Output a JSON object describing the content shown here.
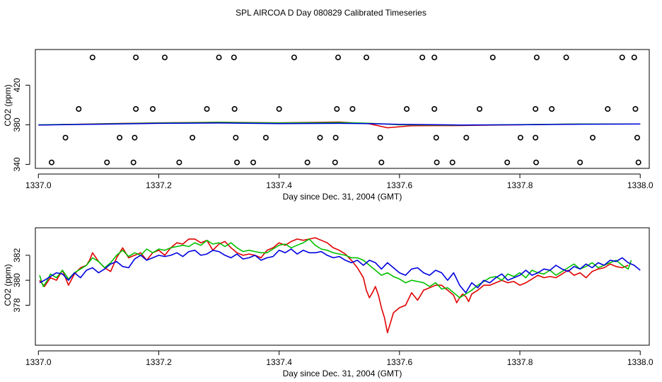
{
  "title": "SPL AIRCOA D  Day 080829  Calibrated Timeseries",
  "colors": {
    "red": "#e00000",
    "green": "#00c000",
    "blue": "#0000e0"
  },
  "chart_data": [
    {
      "type": "scatter",
      "name": "top-panel",
      "xlabel": "Day since Dec. 31, 2004 (GMT)",
      "ylabel": "CO2 (ppm)",
      "xlim": [
        1336.995,
        1338.015
      ],
      "ylim": [
        336,
        456
      ],
      "xticks": [
        1337.0,
        1337.2,
        1337.4,
        1337.6,
        1337.8,
        1338.0
      ],
      "xtick_labels": [
        "1337.0",
        "1337.2",
        "1337.4",
        "1337.6",
        "1337.8",
        "1338.0"
      ],
      "yticks": [
        340,
        380,
        420
      ],
      "ytick_labels": [
        "340",
        "380",
        "420"
      ],
      "points": {
        "x": [
          1337.09,
          1337.162,
          1337.21,
          1337.3,
          1337.325,
          1337.425,
          1337.498,
          1337.545,
          1337.638,
          1337.658,
          1337.755,
          1337.828,
          1337.877,
          1337.97,
          1337.99,
          1337.067,
          1337.162,
          1337.19,
          1337.28,
          1337.326,
          1337.4,
          1337.496,
          1337.522,
          1337.612,
          1337.658,
          1337.733,
          1337.826,
          1337.853,
          1337.946,
          1337.992,
          1337.045,
          1337.135,
          1337.16,
          1337.256,
          1337.328,
          1337.378,
          1337.468,
          1337.494,
          1337.568,
          1337.661,
          1337.711,
          1337.801,
          1337.826,
          1337.921,
          1337.995,
          1337.022,
          1337.114,
          1337.158,
          1337.234,
          1337.33,
          1337.357,
          1337.447,
          1337.493,
          1337.57,
          1337.662,
          1337.688,
          1337.779,
          1337.827,
          1337.9,
          1337.997
        ],
        "y": [
          448,
          448,
          448,
          448,
          448,
          448,
          448,
          448,
          448,
          448,
          448,
          448,
          448,
          448,
          448,
          396,
          396,
          396,
          396,
          396,
          396,
          396,
          396,
          396,
          396,
          396,
          396,
          396,
          396,
          396,
          367,
          367,
          367,
          367,
          367,
          367,
          367,
          367,
          367,
          367,
          367,
          367,
          367,
          367,
          367,
          342,
          342,
          342,
          342,
          342,
          342,
          342,
          342,
          342,
          342,
          342,
          342,
          342,
          342,
          342
        ]
      },
      "series": [
        {
          "name": "red",
          "color": "red",
          "x": [
            1337.0,
            1337.1,
            1337.2,
            1337.3,
            1337.4,
            1337.5,
            1337.55,
            1337.58,
            1337.62,
            1337.7,
            1337.8,
            1337.9,
            1338.0
          ],
          "y": [
            379.8,
            381.0,
            382.0,
            382.6,
            382.0,
            382.8,
            381.0,
            377.0,
            379.0,
            379.2,
            380.0,
            380.8,
            380.8
          ]
        },
        {
          "name": "green",
          "color": "green",
          "x": [
            1337.0,
            1337.1,
            1337.2,
            1337.3,
            1337.4,
            1337.5,
            1337.55,
            1337.6,
            1337.7,
            1337.8,
            1337.9,
            1338.0
          ],
          "y": [
            380.0,
            380.8,
            381.8,
            382.4,
            381.8,
            382.2,
            381.6,
            380.0,
            379.6,
            380.2,
            380.8,
            380.8
          ]
        },
        {
          "name": "blue",
          "color": "blue",
          "x": [
            1337.0,
            1337.1,
            1337.2,
            1337.3,
            1337.4,
            1337.5,
            1337.55,
            1337.6,
            1337.7,
            1337.8,
            1337.9,
            1338.0
          ],
          "y": [
            379.8,
            380.6,
            381.4,
            381.8,
            381.2,
            381.4,
            381.2,
            380.4,
            379.8,
            380.0,
            380.6,
            380.8
          ]
        }
      ]
    },
    {
      "type": "line",
      "name": "bottom-panel",
      "xlabel": "Day since Dec. 31, 2004 (GMT)",
      "ylabel": "CO2 (ppm)",
      "xlim": [
        1336.995,
        1338.015
      ],
      "ylim": [
        374.8,
        384.2
      ],
      "xticks": [
        1337.0,
        1337.2,
        1337.4,
        1337.6,
        1337.8,
        1338.0
      ],
      "xtick_labels": [
        "1337.0",
        "1337.2",
        "1337.4",
        "1337.6",
        "1337.8",
        "1338.0"
      ],
      "yticks": [
        378,
        380,
        382
      ],
      "ytick_labels": [
        "378",
        "380",
        "382"
      ],
      "series": [
        {
          "name": "red",
          "color": "red",
          "x": [
            1337.002,
            1337.01,
            1337.02,
            1337.03,
            1337.04,
            1337.05,
            1337.06,
            1337.07,
            1337.08,
            1337.085,
            1337.09,
            1337.1,
            1337.11,
            1337.12,
            1337.13,
            1337.14,
            1337.15,
            1337.16,
            1337.17,
            1337.18,
            1337.19,
            1337.2,
            1337.21,
            1337.22,
            1337.23,
            1337.24,
            1337.25,
            1337.26,
            1337.27,
            1337.28,
            1337.29,
            1337.3,
            1337.31,
            1337.32,
            1337.33,
            1337.34,
            1337.35,
            1337.36,
            1337.37,
            1337.38,
            1337.39,
            1337.4,
            1337.41,
            1337.42,
            1337.43,
            1337.44,
            1337.45,
            1337.46,
            1337.47,
            1337.48,
            1337.49,
            1337.5,
            1337.51,
            1337.52,
            1337.53,
            1337.54,
            1337.545,
            1337.55,
            1337.555,
            1337.56,
            1337.565,
            1337.57,
            1337.575,
            1337.58,
            1337.585,
            1337.59,
            1337.6,
            1337.61,
            1337.62,
            1337.63,
            1337.64,
            1337.65,
            1337.66,
            1337.67,
            1337.68,
            1337.69,
            1337.695,
            1337.7,
            1337.705,
            1337.71,
            1337.715,
            1337.72,
            1337.73,
            1337.74,
            1337.75,
            1337.76,
            1337.77,
            1337.78,
            1337.79,
            1337.8,
            1337.81,
            1337.82,
            1337.83,
            1337.84,
            1337.85,
            1337.86,
            1337.87,
            1337.88,
            1337.89,
            1337.9,
            1337.91,
            1337.92,
            1337.93,
            1337.94,
            1337.95,
            1337.96,
            1337.97,
            1337.98
          ],
          "y": [
            380.0,
            379.5,
            380.2,
            380.0,
            380.8,
            379.6,
            380.5,
            381.0,
            381.2,
            381.6,
            382.2,
            381.5,
            381.0,
            380.7,
            381.8,
            382.6,
            381.8,
            382.0,
            382.2,
            381.6,
            382.2,
            382.4,
            382.0,
            382.6,
            383.0,
            382.9,
            383.3,
            383.3,
            383.0,
            383.2,
            382.4,
            382.9,
            383.1,
            382.6,
            382.2,
            382.0,
            382.1,
            382.0,
            381.8,
            382.4,
            382.6,
            383.0,
            382.8,
            383.1,
            383.3,
            383.2,
            383.3,
            383.4,
            383.2,
            383.0,
            382.6,
            382.4,
            382.1,
            381.6,
            381.0,
            380.2,
            379.2,
            378.6,
            379.0,
            379.5,
            378.8,
            377.8,
            377.0,
            375.8,
            376.6,
            377.4,
            377.8,
            378.0,
            379.0,
            378.4,
            379.2,
            379.4,
            379.6,
            379.6,
            379.2,
            378.8,
            378.2,
            378.6,
            378.9,
            378.7,
            378.3,
            378.9,
            379.2,
            379.6,
            379.6,
            379.8,
            380.0,
            379.8,
            379.9,
            379.6,
            379.8,
            380.1,
            380.4,
            380.2,
            380.3,
            380.2,
            380.5,
            380.8,
            380.4,
            380.6,
            380.2,
            380.7,
            380.9,
            381.0,
            381.3,
            381.1,
            381.0,
            381.2
          ]
        },
        {
          "name": "green",
          "color": "green",
          "x": [
            1337.002,
            1337.008,
            1337.015,
            1337.02,
            1337.03,
            1337.04,
            1337.05,
            1337.06,
            1337.07,
            1337.08,
            1337.09,
            1337.1,
            1337.11,
            1337.12,
            1337.13,
            1337.14,
            1337.15,
            1337.16,
            1337.17,
            1337.18,
            1337.19,
            1337.2,
            1337.21,
            1337.22,
            1337.23,
            1337.24,
            1337.25,
            1337.26,
            1337.27,
            1337.28,
            1337.29,
            1337.3,
            1337.31,
            1337.32,
            1337.33,
            1337.34,
            1337.35,
            1337.36,
            1337.37,
            1337.38,
            1337.39,
            1337.4,
            1337.41,
            1337.42,
            1337.43,
            1337.44,
            1337.45,
            1337.46,
            1337.47,
            1337.48,
            1337.49,
            1337.5,
            1337.51,
            1337.52,
            1337.53,
            1337.54,
            1337.55,
            1337.56,
            1337.57,
            1337.58,
            1337.59,
            1337.6,
            1337.61,
            1337.62,
            1337.63,
            1337.64,
            1337.65,
            1337.66,
            1337.67,
            1337.68,
            1337.69,
            1337.7,
            1337.71,
            1337.72,
            1337.73,
            1337.74,
            1337.75,
            1337.76,
            1337.77,
            1337.78,
            1337.79,
            1337.8,
            1337.81,
            1337.82,
            1337.83,
            1337.84,
            1337.85,
            1337.86,
            1337.87,
            1337.88,
            1337.89,
            1337.9,
            1337.91,
            1337.92,
            1337.93,
            1337.94,
            1337.95,
            1337.96,
            1337.97,
            1337.98,
            1337.985
          ],
          "y": [
            380.4,
            379.5,
            380.0,
            380.5,
            380.2,
            380.8,
            380.1,
            380.6,
            380.9,
            381.2,
            381.8,
            381.5,
            381.0,
            381.4,
            382.0,
            382.4,
            381.9,
            382.2,
            382.0,
            382.5,
            382.2,
            382.5,
            382.4,
            382.6,
            382.7,
            382.8,
            382.7,
            383.0,
            382.8,
            383.2,
            382.9,
            383.0,
            382.7,
            383.0,
            382.6,
            382.3,
            382.4,
            382.3,
            382.2,
            382.2,
            382.5,
            382.8,
            382.9,
            382.6,
            382.8,
            383.0,
            383.3,
            382.8,
            382.5,
            382.4,
            382.2,
            382.1,
            382.0,
            381.8,
            381.8,
            381.6,
            381.2,
            380.8,
            380.4,
            380.6,
            380.3,
            380.1,
            379.8,
            380.0,
            379.9,
            379.8,
            379.5,
            379.8,
            379.3,
            379.4,
            379.0,
            378.6,
            378.9,
            379.2,
            379.6,
            379.9,
            380.2,
            380.3,
            380.0,
            380.5,
            380.3,
            380.6,
            380.2,
            380.8,
            380.6,
            380.5,
            380.8,
            380.4,
            380.7,
            381.0,
            381.3,
            380.9,
            381.1,
            381.4,
            381.0,
            381.2,
            381.4,
            381.6,
            381.2,
            380.9,
            381.6
          ]
        },
        {
          "name": "blue",
          "color": "blue",
          "x": [
            1337.002,
            1337.01,
            1337.02,
            1337.03,
            1337.04,
            1337.05,
            1337.06,
            1337.07,
            1337.08,
            1337.09,
            1337.1,
            1337.11,
            1337.12,
            1337.13,
            1337.14,
            1337.15,
            1337.16,
            1337.17,
            1337.18,
            1337.19,
            1337.2,
            1337.21,
            1337.22,
            1337.23,
            1337.24,
            1337.25,
            1337.26,
            1337.27,
            1337.28,
            1337.29,
            1337.3,
            1337.31,
            1337.32,
            1337.33,
            1337.34,
            1337.35,
            1337.36,
            1337.37,
            1337.38,
            1337.39,
            1337.4,
            1337.41,
            1337.42,
            1337.43,
            1337.44,
            1337.45,
            1337.46,
            1337.47,
            1337.48,
            1337.49,
            1337.5,
            1337.51,
            1337.52,
            1337.53,
            1337.54,
            1337.55,
            1337.56,
            1337.57,
            1337.58,
            1337.59,
            1337.6,
            1337.61,
            1337.62,
            1337.63,
            1337.64,
            1337.65,
            1337.66,
            1337.67,
            1337.68,
            1337.69,
            1337.7,
            1337.71,
            1337.72,
            1337.73,
            1337.74,
            1337.75,
            1337.76,
            1337.77,
            1337.78,
            1337.79,
            1337.8,
            1337.81,
            1337.82,
            1337.83,
            1337.84,
            1337.85,
            1337.86,
            1337.87,
            1337.88,
            1337.89,
            1337.9,
            1337.91,
            1337.92,
            1337.93,
            1337.94,
            1337.95,
            1337.96,
            1337.97,
            1337.98,
            1337.99,
            1338.0
          ],
          "y": [
            379.8,
            380.0,
            380.3,
            380.6,
            380.5,
            380.0,
            380.6,
            380.2,
            380.8,
            381.0,
            380.6,
            380.9,
            381.3,
            381.5,
            381.1,
            381.0,
            381.7,
            382.0,
            381.6,
            381.8,
            382.0,
            381.9,
            382.0,
            382.2,
            381.9,
            382.3,
            382.4,
            382.0,
            382.1,
            382.4,
            382.3,
            382.0,
            381.8,
            382.1,
            381.7,
            381.8,
            382.0,
            381.6,
            381.8,
            381.9,
            382.4,
            382.2,
            382.5,
            382.1,
            382.4,
            382.2,
            382.2,
            382.3,
            382.0,
            381.8,
            381.9,
            381.6,
            381.4,
            381.6,
            381.2,
            381.6,
            381.4,
            380.9,
            381.4,
            381.0,
            380.6,
            380.4,
            380.9,
            381.0,
            380.6,
            380.4,
            380.8,
            380.6,
            380.0,
            380.6,
            379.6,
            379.0,
            379.8,
            379.4,
            380.0,
            379.8,
            380.2,
            380.5,
            380.0,
            380.2,
            380.4,
            380.8,
            380.4,
            380.6,
            380.9,
            380.8,
            381.2,
            380.9,
            380.7,
            381.1,
            380.9,
            381.3,
            381.0,
            381.4,
            381.2,
            381.6,
            381.5,
            381.8,
            381.4,
            381.2,
            380.8
          ]
        }
      ]
    }
  ]
}
